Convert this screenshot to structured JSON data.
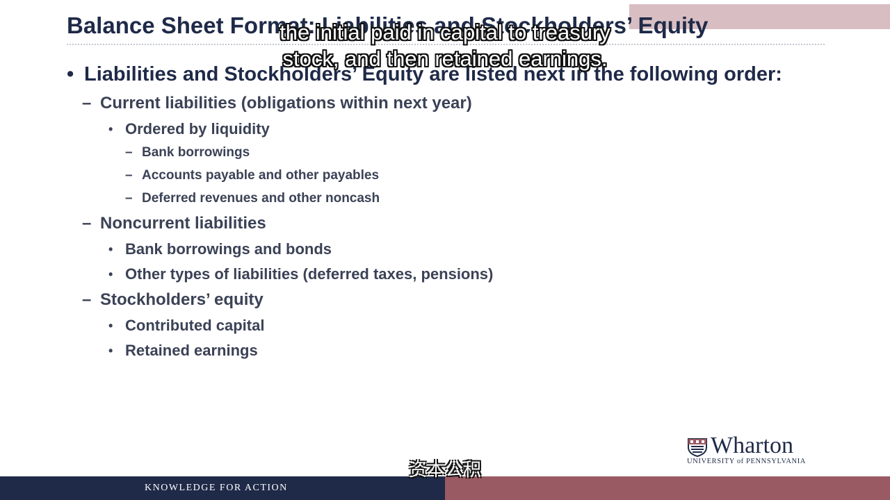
{
  "slide": {
    "title": "Balance Sheet Format: Liabilities and Stockholders’ Equity",
    "main_bullet": "Liabilities and Stockholders’ Equity are listed next in the following order:",
    "sections": [
      {
        "label": "Current liabilities (obligations within next year)",
        "items": [
          {
            "label": "Ordered by liquidity",
            "subitems": [
              "Bank borrowings",
              "Accounts payable and other payables",
              "Deferred revenues and other noncash"
            ]
          }
        ]
      },
      {
        "label": "Noncurrent liabilities",
        "items": [
          {
            "label": "Bank borrowings and bonds"
          },
          {
            "label": "Other types of liabilities (deferred taxes, pensions)"
          }
        ]
      },
      {
        "label": "Stockholders’ equity",
        "items": [
          {
            "label": "Contributed capital"
          },
          {
            "label": "Retained earnings"
          }
        ]
      }
    ]
  },
  "subtitles": {
    "english_line1": "the initial paid in capital to treasury",
    "english_line2": "stock, and then retained earnings.",
    "chinese": "资本公积"
  },
  "branding": {
    "logo_name": "Wharton",
    "logo_sub": "UNIVERSITY of PENNSYLVANIA",
    "footer_tagline": "KNOWLEDGE FOR ACTION"
  },
  "colors": {
    "navy": "#1f2a48",
    "burgundy": "#9a5a63",
    "text_gray": "#3b4256"
  }
}
